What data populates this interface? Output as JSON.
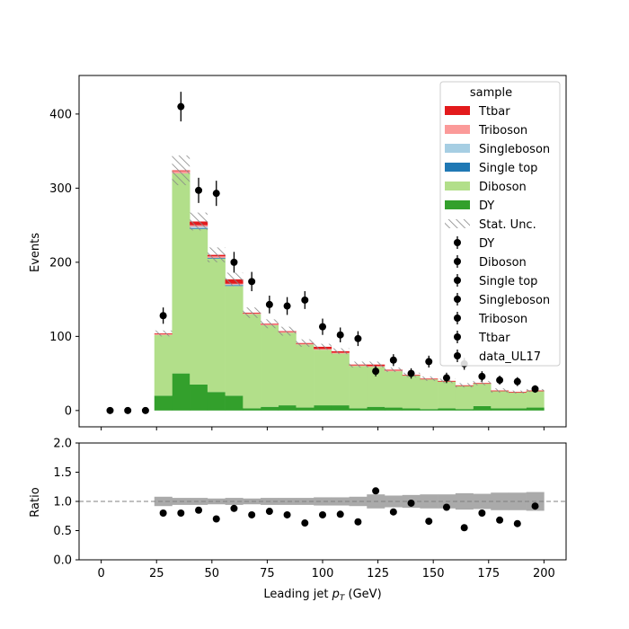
{
  "chart_data": {
    "type": "bar",
    "title": "",
    "xlabel": "Leading jet  p_T (GeV)",
    "ylabel": "Events",
    "ratio_ylabel": "Ratio",
    "xlim": [
      -10,
      210
    ],
    "ylim": [
      -22,
      452
    ],
    "ratio_ylim": [
      0.0,
      2.0
    ],
    "xticks": [
      0,
      25,
      50,
      75,
      100,
      125,
      150,
      175,
      200
    ],
    "yticks": [
      0,
      100,
      200,
      300,
      400
    ],
    "ratio_yticks": [
      0.0,
      0.5,
      1.0,
      1.5,
      2.0
    ],
    "ratio_reference": 1.0,
    "bin_edges": [
      0,
      8,
      16,
      24,
      32,
      40,
      48,
      56,
      64,
      72,
      80,
      88,
      96,
      104,
      112,
      120,
      128,
      136,
      144,
      152,
      160,
      168,
      176,
      184,
      192,
      200
    ],
    "stack": [
      {
        "name": "DY",
        "color": "#33a02c",
        "values": [
          0,
          0,
          0,
          20,
          50,
          35,
          25,
          20,
          3,
          5,
          7,
          4,
          7,
          7,
          3,
          5,
          4,
          3,
          2,
          3,
          2,
          6,
          3,
          3,
          4
        ]
      },
      {
        "name": "Diboson",
        "color": "#b2df8a",
        "values": [
          0,
          0,
          0,
          82,
          270,
          210,
          180,
          148,
          127,
          110,
          98,
          85,
          75,
          70,
          57,
          54,
          49,
          44,
          40,
          36,
          31,
          30,
          23,
          21,
          22
        ]
      },
      {
        "name": "Single top",
        "color": "#1f78b4",
        "values": [
          0,
          0,
          0,
          0,
          0,
          1,
          1,
          1,
          0,
          0,
          0,
          0,
          0,
          0,
          0,
          0,
          0,
          0,
          0,
          0,
          0,
          0,
          0,
          0,
          0
        ]
      },
      {
        "name": "Singleboson",
        "color": "#a6cee3",
        "values": [
          0,
          0,
          0,
          0,
          0,
          2,
          0,
          1,
          0,
          0,
          0,
          0,
          0,
          0,
          0,
          0,
          0,
          0,
          0,
          0,
          0,
          0,
          0,
          0,
          0
        ]
      },
      {
        "name": "Triboson",
        "color": "#fb9a99",
        "values": [
          0,
          0,
          0,
          1,
          3,
          2,
          2,
          1,
          1,
          1,
          1,
          1,
          1,
          1,
          1,
          1,
          1,
          0,
          0,
          0,
          0,
          0,
          0,
          0,
          0
        ]
      },
      {
        "name": "Ttbar",
        "color": "#e31a1c",
        "values": [
          0,
          0,
          0,
          1,
          1,
          5,
          2,
          6,
          1,
          1,
          1,
          1,
          3,
          2,
          1,
          2,
          1,
          1,
          1,
          1,
          1,
          1,
          1,
          1,
          1
        ]
      }
    ],
    "stat_unc": [
      0,
      0,
      0,
      4,
      20,
      12,
      10,
      9,
      7,
      6,
      6,
      5,
      4,
      4,
      4,
      4,
      3,
      3,
      3,
      3,
      3,
      3,
      3,
      2,
      2
    ],
    "data": {
      "name": "data_UL17",
      "x": [
        4,
        12,
        20,
        28,
        36,
        44,
        52,
        60,
        68,
        76,
        84,
        92,
        100,
        108,
        116,
        124,
        132,
        140,
        148,
        156,
        164,
        172,
        180,
        188,
        196
      ],
      "y": [
        0,
        0,
        0,
        128,
        410,
        297,
        293,
        200,
        174,
        143,
        141,
        149,
        113,
        102,
        97,
        53,
        68,
        50,
        66,
        44,
        63,
        46,
        41,
        39,
        29
      ],
      "err": [
        0,
        0,
        0,
        11,
        20,
        17,
        17,
        14,
        13,
        12,
        12,
        12,
        11,
        10,
        10,
        7,
        8,
        7,
        8,
        7,
        8,
        7,
        6,
        6,
        5
      ]
    },
    "ratio": {
      "x": [
        28,
        36,
        44,
        52,
        60,
        68,
        76,
        84,
        92,
        100,
        108,
        116,
        124,
        132,
        140,
        148,
        156,
        164,
        172,
        180,
        188,
        196
      ],
      "y": [
        0.8,
        0.8,
        0.85,
        0.7,
        0.88,
        0.77,
        0.83,
        0.77,
        0.63,
        0.77,
        0.78,
        0.65,
        1.18,
        0.82,
        0.97,
        0.66,
        0.9,
        0.55,
        0.8,
        0.68,
        0.62,
        0.92
      ],
      "unc": [
        0.08,
        0.06,
        0.06,
        0.05,
        0.06,
        0.05,
        0.06,
        0.06,
        0.06,
        0.07,
        0.07,
        0.08,
        0.12,
        0.1,
        0.11,
        0.12,
        0.12,
        0.14,
        0.13,
        0.15,
        0.15,
        0.16
      ]
    },
    "legend": {
      "title": "sample",
      "placement": "top-right",
      "entries": [
        {
          "label": "Ttbar",
          "kind": "patch",
          "color": "#e31a1c"
        },
        {
          "label": "Triboson",
          "kind": "patch",
          "color": "#fb9a99"
        },
        {
          "label": "Singleboson",
          "kind": "patch",
          "color": "#a6cee3"
        },
        {
          "label": "Single top",
          "kind": "patch",
          "color": "#1f78b4"
        },
        {
          "label": "Diboson",
          "kind": "patch",
          "color": "#b2df8a"
        },
        {
          "label": "DY",
          "kind": "patch",
          "color": "#33a02c"
        },
        {
          "label": "Stat. Unc.",
          "kind": "hatch",
          "color": "#888888"
        },
        {
          "label": "DY",
          "kind": "marker",
          "color": "#000000"
        },
        {
          "label": "Diboson",
          "kind": "marker",
          "color": "#000000"
        },
        {
          "label": "Single top",
          "kind": "marker",
          "color": "#000000"
        },
        {
          "label": "Singleboson",
          "kind": "marker",
          "color": "#000000"
        },
        {
          "label": "Triboson",
          "kind": "marker",
          "color": "#000000"
        },
        {
          "label": "Ttbar",
          "kind": "marker",
          "color": "#000000"
        },
        {
          "label": "data_UL17",
          "kind": "marker",
          "color": "#000000"
        }
      ]
    },
    "grid": false,
    "colors": {
      "unc_band": "#aaaaaa",
      "reference_line": "#808080"
    }
  }
}
